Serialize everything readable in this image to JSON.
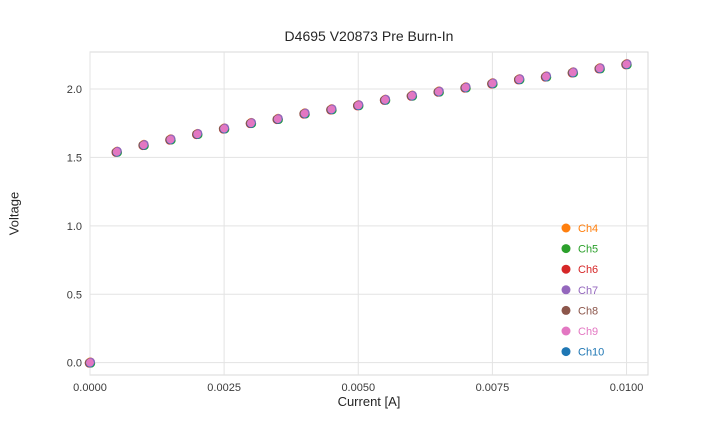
{
  "chart_data": {
    "type": "scatter",
    "title": "D4695 V20873 Pre Burn-In",
    "xlabel": "Current [A]",
    "ylabel": "Voltage",
    "xlim": [
      0,
      0.0104
    ],
    "ylim": [
      -0.09,
      2.27
    ],
    "xticks": [
      0.0,
      0.0025,
      0.005,
      0.0075,
      0.01
    ],
    "yticks": [
      0.0,
      0.5,
      1.0,
      1.5,
      2.0
    ],
    "grid": true,
    "legend_position": "lower-right-inside",
    "x": [
      0.0,
      0.0005,
      0.001,
      0.0015,
      0.002,
      0.0025,
      0.003,
      0.0035,
      0.004,
      0.0045,
      0.005,
      0.0055,
      0.006,
      0.0065,
      0.007,
      0.0075,
      0.008,
      0.0085,
      0.009,
      0.0095,
      0.01
    ],
    "series": [
      {
        "name": "Ch4",
        "color": "#ff7f0e",
        "y": [
          0.0,
          1.54,
          1.59,
          1.63,
          1.67,
          1.71,
          1.75,
          1.78,
          1.82,
          1.85,
          1.88,
          1.92,
          1.95,
          1.98,
          2.01,
          2.04,
          2.07,
          2.09,
          2.12,
          2.15,
          2.18
        ]
      },
      {
        "name": "Ch5",
        "color": "#2ca02c",
        "y": [
          0.0,
          1.54,
          1.59,
          1.63,
          1.67,
          1.71,
          1.75,
          1.78,
          1.82,
          1.85,
          1.88,
          1.92,
          1.95,
          1.98,
          2.01,
          2.04,
          2.07,
          2.09,
          2.12,
          2.15,
          2.18
        ]
      },
      {
        "name": "Ch6",
        "color": "#d62728",
        "y": [
          0.0,
          1.54,
          1.59,
          1.63,
          1.67,
          1.71,
          1.75,
          1.78,
          1.82,
          1.85,
          1.88,
          1.92,
          1.95,
          1.98,
          2.01,
          2.04,
          2.07,
          2.09,
          2.12,
          2.15,
          2.18
        ]
      },
      {
        "name": "Ch7",
        "color": "#9467bd",
        "y": [
          0.0,
          1.54,
          1.59,
          1.63,
          1.67,
          1.71,
          1.75,
          1.78,
          1.82,
          1.85,
          1.88,
          1.92,
          1.95,
          1.98,
          2.01,
          2.04,
          2.07,
          2.09,
          2.12,
          2.15,
          2.18
        ]
      },
      {
        "name": "Ch8",
        "color": "#8c564b",
        "y": [
          0.0,
          1.54,
          1.59,
          1.63,
          1.67,
          1.71,
          1.75,
          1.78,
          1.82,
          1.85,
          1.88,
          1.92,
          1.95,
          1.98,
          2.01,
          2.04,
          2.07,
          2.09,
          2.12,
          2.15,
          2.18
        ]
      },
      {
        "name": "Ch9",
        "color": "#e377c2",
        "y": [
          0.0,
          1.54,
          1.59,
          1.63,
          1.67,
          1.71,
          1.75,
          1.78,
          1.82,
          1.85,
          1.88,
          1.92,
          1.95,
          1.98,
          2.01,
          2.04,
          2.07,
          2.09,
          2.12,
          2.15,
          2.18
        ]
      },
      {
        "name": "Ch10",
        "color": "#1f77b4",
        "y": [
          0.0,
          1.54,
          1.59,
          1.63,
          1.67,
          1.71,
          1.75,
          1.78,
          1.82,
          1.85,
          1.88,
          1.92,
          1.95,
          1.98,
          2.01,
          2.04,
          2.07,
          2.09,
          2.12,
          2.15,
          2.18
        ]
      }
    ],
    "style": {
      "grid_color": "#e3e3e3",
      "border_color": "#d9d9d9",
      "tick_label_color": "#3b3b3b",
      "legend_text_color": "#333333",
      "plot_bg": "#ffffff"
    }
  }
}
